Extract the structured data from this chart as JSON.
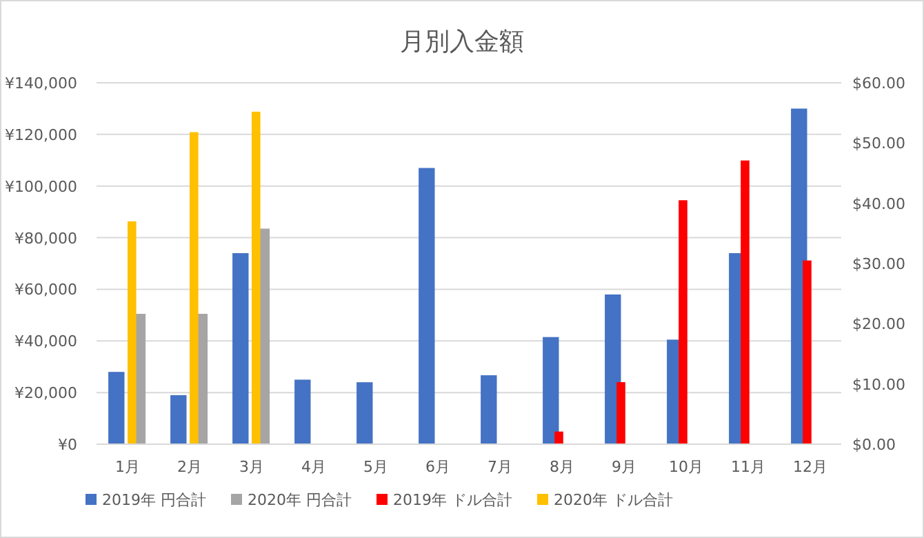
{
  "chart_data": {
    "type": "bar",
    "title": "月別入金額",
    "categories": [
      "1月",
      "2月",
      "3月",
      "4月",
      "5月",
      "6月",
      "7月",
      "8月",
      "9月",
      "10月",
      "11月",
      "12月"
    ],
    "series": [
      {
        "name": "2019年 円合計",
        "color": "#4472c4",
        "values": [
          28000,
          19000,
          74000,
          25000,
          24000,
          107000,
          26700,
          41500,
          58000,
          40500,
          74000,
          130000
        ]
      },
      {
        "name": "2020年 円合計",
        "color": "#a5a5a5",
        "values": [
          50500,
          50500,
          83500,
          null,
          null,
          null,
          null,
          null,
          null,
          null,
          null,
          null
        ]
      },
      {
        "name": "2019年 ドル合計",
        "color": "#ff0000",
        "axis": "y2",
        "values": [
          null,
          null,
          null,
          null,
          null,
          null,
          null,
          2.1,
          10.3,
          40.5,
          47.1,
          30.5
        ]
      },
      {
        "name": "2020年 ドル合計",
        "color": "#ffc000",
        "axis": "y2",
        "values": [
          37,
          51.8,
          55.2,
          null,
          null,
          null,
          null,
          null,
          null,
          null,
          null,
          null
        ]
      }
    ],
    "ylim": [
      0,
      140000
    ],
    "yticks": [
      {
        "value": 0,
        "label": "¥0"
      },
      {
        "value": 20000,
        "label": "¥20,000"
      },
      {
        "value": 40000,
        "label": "¥40,000"
      },
      {
        "value": 60000,
        "label": "¥60,000"
      },
      {
        "value": 80000,
        "label": "¥80,000"
      },
      {
        "value": 100000,
        "label": "¥100,000"
      },
      {
        "value": 120000,
        "label": "¥120,000"
      },
      {
        "value": 140000,
        "label": "¥140,000"
      }
    ],
    "y2lim": [
      0,
      60
    ],
    "y2ticks": [
      {
        "value": 0,
        "label": "$0.00"
      },
      {
        "value": 10,
        "label": "$10.00"
      },
      {
        "value": 20,
        "label": "$20.00"
      },
      {
        "value": 30,
        "label": "$30.00"
      },
      {
        "value": 40,
        "label": "$40.00"
      },
      {
        "value": 50,
        "label": "$50.00"
      },
      {
        "value": 60,
        "label": "$60.00"
      }
    ],
    "grid": "y",
    "legend": "bottom"
  }
}
